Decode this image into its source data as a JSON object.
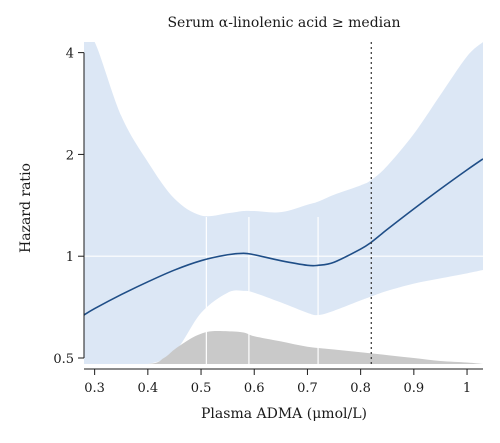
{
  "chart_data": {
    "type": "line",
    "title": "Serum α-linolenic acid ≥ median",
    "xlabel": "Plasma ADMA (μmol/L)",
    "ylabel": "Hazard ratio",
    "xlim": [
      0.28,
      1.03
    ],
    "ylim": [
      0.48,
      4.3
    ],
    "y_scale": "log",
    "x_ticks": [
      0.3,
      0.4,
      0.5,
      0.6,
      0.7,
      0.8,
      0.9,
      1.0
    ],
    "x_tick_labels": [
      "0.3",
      "0.4",
      "0.5",
      "0.6",
      "0.7",
      "0.8",
      "0.9",
      "1"
    ],
    "y_ticks": [
      0.5,
      1,
      2,
      4
    ],
    "y_tick_labels": [
      "0.5",
      "1",
      "2",
      "4"
    ],
    "reference_line_y": 1,
    "vertical_dotted_line_x": 0.82,
    "vertical_gridlines_x": [
      0.51,
      0.59,
      0.72
    ],
    "colors": {
      "line": "#1f4e87",
      "band": "#dce7f5",
      "density": "#c9c9c9",
      "reference": "#ffffff",
      "dotted": "#333333"
    },
    "series": [
      {
        "x": [
          0.28,
          0.3,
          0.35,
          0.4,
          0.45,
          0.5,
          0.55,
          0.58,
          0.6,
          0.65,
          0.7,
          0.72,
          0.75,
          0.8,
          0.82,
          0.85,
          0.9,
          0.95,
          1.0,
          1.03
        ],
        "hr": [
          0.67,
          0.7,
          0.77,
          0.84,
          0.91,
          0.97,
          1.01,
          1.02,
          1.01,
          0.97,
          0.94,
          0.94,
          0.96,
          1.05,
          1.1,
          1.2,
          1.38,
          1.58,
          1.8,
          1.94
        ],
        "lower": [
          0.22,
          0.25,
          0.32,
          0.4,
          0.52,
          0.68,
          0.78,
          0.79,
          0.78,
          0.73,
          0.68,
          0.67,
          0.69,
          0.74,
          0.76,
          0.79,
          0.83,
          0.86,
          0.89,
          0.91
        ],
        "upper": [
          5.2,
          4.3,
          2.6,
          1.9,
          1.48,
          1.32,
          1.34,
          1.36,
          1.36,
          1.35,
          1.42,
          1.45,
          1.52,
          1.62,
          1.68,
          1.85,
          2.3,
          3.0,
          3.9,
          4.6
        ]
      }
    ],
    "density": {
      "x": [
        0.28,
        0.4,
        0.43,
        0.45,
        0.48,
        0.5,
        0.52,
        0.55,
        0.58,
        0.6,
        0.65,
        0.7,
        0.75,
        0.8,
        0.85,
        0.9,
        0.95,
        1.0,
        1.03
      ],
      "hr_top": [
        0.48,
        0.48,
        0.5,
        0.53,
        0.57,
        0.59,
        0.6,
        0.6,
        0.595,
        0.58,
        0.56,
        0.54,
        0.53,
        0.52,
        0.51,
        0.5,
        0.49,
        0.485,
        0.48
      ]
    }
  }
}
